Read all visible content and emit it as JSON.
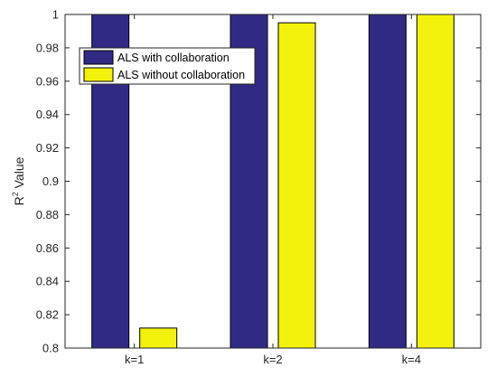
{
  "chart_data": {
    "type": "bar",
    "categories": [
      "k=1",
      "k=2",
      "k=4"
    ],
    "series": [
      {
        "name": "ALS with collaboration",
        "values": [
          1.0,
          1.0,
          1.0
        ],
        "color": "#312a84"
      },
      {
        "name": "ALS without collaboration",
        "values": [
          0.812,
          0.995,
          1.0
        ],
        "color": "#f2f20a"
      }
    ],
    "ylabel": "R2 Value",
    "ylabel_main": "R",
    "ylabel_sup": "2",
    "ylabel_rest": " Value",
    "xlabel": "",
    "title": "",
    "ylim": [
      0.8,
      1.0
    ],
    "yticks": [
      0.8,
      0.82,
      0.84,
      0.86,
      0.88,
      0.9,
      0.92,
      0.94,
      0.96,
      0.98,
      1
    ],
    "ytick_labels": [
      "0.8",
      "0.82",
      "0.84",
      "0.86",
      "0.88",
      "0.9",
      "0.92",
      "0.94",
      "0.96",
      "0.98",
      "1"
    ],
    "grid": false,
    "legend_position": "top-left"
  }
}
